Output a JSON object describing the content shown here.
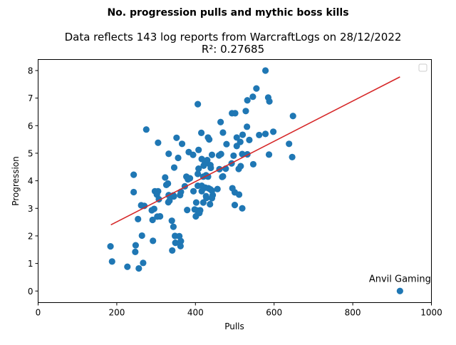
{
  "chart_data": {
    "type": "scatter",
    "suptitle": "No. progression pulls and mythic boss kills",
    "title_lines": [
      "Data reflects 143 log reports from WarcraftLogs on 28/12/2022",
      "R²: 0.27685"
    ],
    "xlabel": "Pulls",
    "ylabel": "Progression",
    "xlim": [
      0,
      1000
    ],
    "ylim": [
      -0.42,
      8.4
    ],
    "xticks": [
      0,
      200,
      400,
      600,
      800,
      1000
    ],
    "yticks": [
      0,
      1,
      2,
      3,
      4,
      5,
      6,
      7,
      8
    ],
    "grid": false,
    "legend": "top-right (empty)",
    "colors": {
      "points": "#1f77b4",
      "trendline": "#d62728"
    },
    "trendline": {
      "x": [
        185,
        920
      ],
      "y": [
        2.4,
        7.77
      ]
    },
    "annotations": [
      {
        "text": "Anvil Gaming",
        "x": 920,
        "y": 0
      }
    ],
    "points": [
      [
        920,
        0
      ],
      [
        578,
        8.0
      ],
      [
        406,
        6.78
      ],
      [
        555,
        7.35
      ],
      [
        546,
        7.05
      ],
      [
        585,
        7.02
      ],
      [
        588,
        6.88
      ],
      [
        532,
        6.92
      ],
      [
        493,
        6.45
      ],
      [
        501,
        6.45
      ],
      [
        528,
        6.53
      ],
      [
        648,
        6.35
      ],
      [
        464,
        6.13
      ],
      [
        531,
        5.96
      ],
      [
        275,
        5.86
      ],
      [
        415,
        5.74
      ],
      [
        470,
        5.75
      ],
      [
        598,
        5.78
      ],
      [
        578,
        5.7
      ],
      [
        562,
        5.66
      ],
      [
        520,
        5.67
      ],
      [
        505,
        5.57
      ],
      [
        352,
        5.56
      ],
      [
        432,
        5.57
      ],
      [
        435,
        5.5
      ],
      [
        537,
        5.48
      ],
      [
        305,
        5.38
      ],
      [
        366,
        5.34
      ],
      [
        479,
        5.33
      ],
      [
        505,
        5.26
      ],
      [
        514,
        5.41
      ],
      [
        638,
        5.34
      ],
      [
        408,
        5.12
      ],
      [
        383,
        5.04
      ],
      [
        332,
        4.98
      ],
      [
        356,
        4.83
      ],
      [
        394,
        4.94
      ],
      [
        442,
        4.94
      ],
      [
        460,
        4.92
      ],
      [
        465,
        4.97
      ],
      [
        497,
        4.91
      ],
      [
        519,
        4.97
      ],
      [
        532,
        4.96
      ],
      [
        587,
        4.95
      ],
      [
        646,
        4.86
      ],
      [
        416,
        4.79
      ],
      [
        424,
        4.62
      ],
      [
        430,
        4.75
      ],
      [
        421,
        4.55
      ],
      [
        425,
        4.7
      ],
      [
        438,
        4.57
      ],
      [
        439,
        4.47
      ],
      [
        492,
        4.63
      ],
      [
        547,
        4.6
      ],
      [
        515,
        4.53
      ],
      [
        510,
        4.43
      ],
      [
        346,
        4.48
      ],
      [
        408,
        4.44
      ],
      [
        477,
        4.44
      ],
      [
        461,
        4.42
      ],
      [
        420,
        4.15
      ],
      [
        406,
        4.25
      ],
      [
        427,
        4.2
      ],
      [
        432,
        4.15
      ],
      [
        470,
        4.16
      ],
      [
        468,
        4.14
      ],
      [
        243,
        4.22
      ],
      [
        323,
        4.12
      ],
      [
        377,
        4.15
      ],
      [
        381,
        4.05
      ],
      [
        386,
        4.09
      ],
      [
        330,
        3.9
      ],
      [
        326,
        3.85
      ],
      [
        373,
        3.8
      ],
      [
        406,
        3.82
      ],
      [
        416,
        3.82
      ],
      [
        425,
        3.75
      ],
      [
        433,
        3.73
      ],
      [
        442,
        3.64
      ],
      [
        456,
        3.7
      ],
      [
        494,
        3.73
      ],
      [
        438,
        3.69
      ],
      [
        416,
        3.62
      ],
      [
        297,
        3.62
      ],
      [
        305,
        3.62
      ],
      [
        395,
        3.62
      ],
      [
        363,
        3.6
      ],
      [
        243,
        3.59
      ],
      [
        302,
        3.5
      ],
      [
        332,
        3.48
      ],
      [
        344,
        3.47
      ],
      [
        361,
        3.48
      ],
      [
        444,
        3.48
      ],
      [
        500,
        3.58
      ],
      [
        511,
        3.5
      ],
      [
        427,
        3.44
      ],
      [
        428,
        3.38
      ],
      [
        345,
        3.43
      ],
      [
        442,
        3.37
      ],
      [
        307,
        3.33
      ],
      [
        334,
        3.28
      ],
      [
        331,
        3.22
      ],
      [
        420,
        3.21
      ],
      [
        402,
        3.21
      ],
      [
        437,
        3.15
      ],
      [
        262,
        3.11
      ],
      [
        270,
        3.09
      ],
      [
        500,
        3.12
      ],
      [
        519,
        3.0
      ],
      [
        295,
        2.98
      ],
      [
        289,
        2.93
      ],
      [
        412,
        2.93
      ],
      [
        379,
        2.94
      ],
      [
        398,
        2.96
      ],
      [
        405,
        2.92
      ],
      [
        410,
        2.83
      ],
      [
        401,
        2.71
      ],
      [
        303,
        2.7
      ],
      [
        310,
        2.71
      ],
      [
        254,
        2.61
      ],
      [
        291,
        2.58
      ],
      [
        340,
        2.55
      ],
      [
        344,
        2.33
      ],
      [
        348,
        2.0
      ],
      [
        359,
        1.99
      ],
      [
        264,
        2.01
      ],
      [
        292,
        1.82
      ],
      [
        363,
        1.81
      ],
      [
        349,
        1.75
      ],
      [
        362,
        1.63
      ],
      [
        184,
        1.62
      ],
      [
        248,
        1.66
      ],
      [
        247,
        1.42
      ],
      [
        341,
        1.47
      ],
      [
        188,
        1.07
      ],
      [
        267,
        1.02
      ],
      [
        227,
        0.88
      ],
      [
        256,
        0.82
      ]
    ]
  }
}
